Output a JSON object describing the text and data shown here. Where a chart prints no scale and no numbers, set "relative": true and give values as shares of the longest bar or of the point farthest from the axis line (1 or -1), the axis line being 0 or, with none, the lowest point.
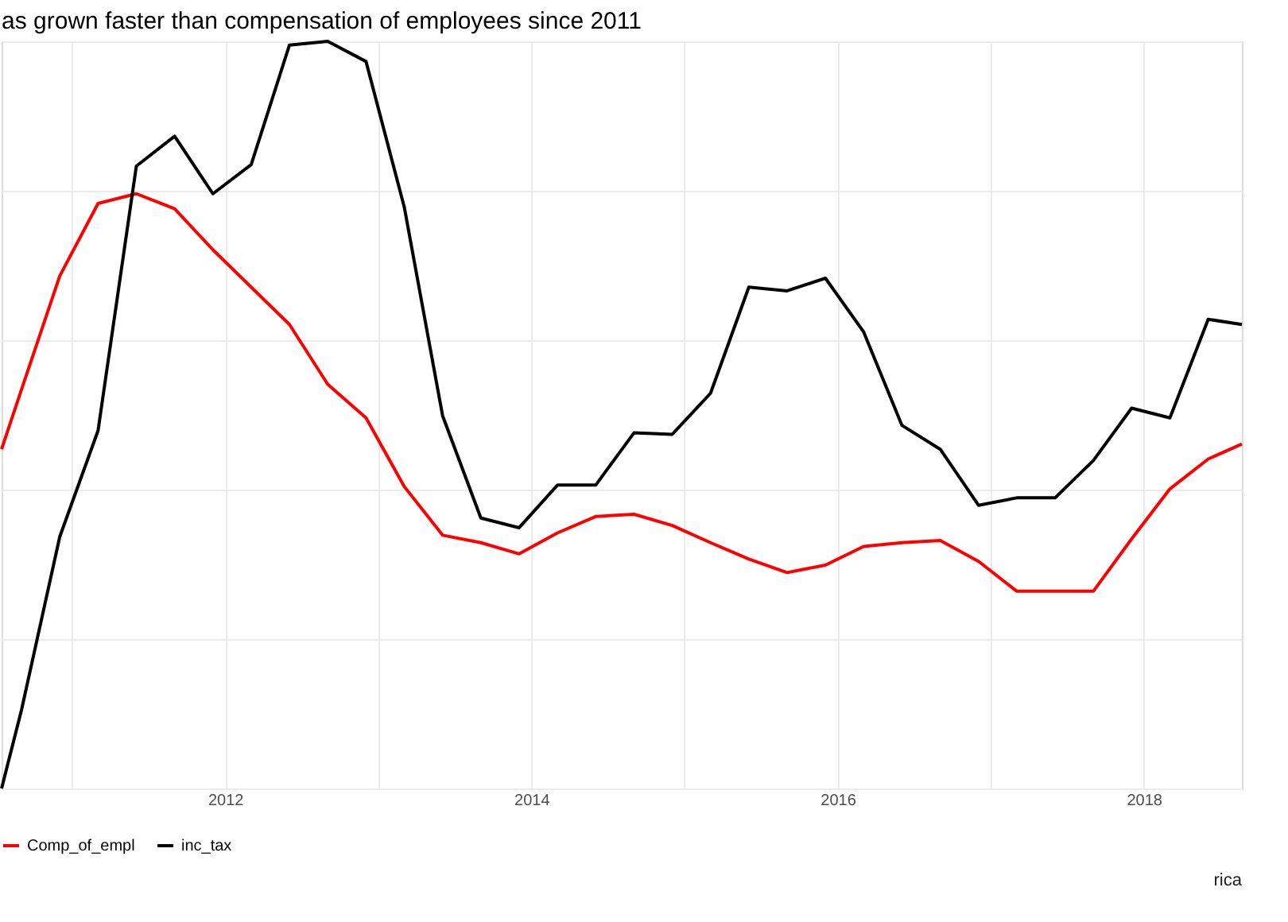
{
  "chart_data": {
    "type": "line",
    "title": "as grown faster than compensation of employees since 2011",
    "relative": true,
    "x": [
      2010.54,
      2010.67,
      2010.92,
      2011.17,
      2011.42,
      2011.67,
      2011.92,
      2012.17,
      2012.42,
      2012.67,
      2012.92,
      2013.17,
      2013.42,
      2013.67,
      2013.92,
      2014.17,
      2014.42,
      2014.67,
      2014.92,
      2015.17,
      2015.42,
      2015.67,
      2015.92,
      2016.17,
      2016.42,
      2016.67,
      2016.92,
      2017.17,
      2017.42,
      2017.67,
      2017.92,
      2018.17,
      2018.42,
      2018.64
    ],
    "series": [
      {
        "name": "Comp_of_empl",
        "color": "#ff0000",
        "values": [
          0.454,
          0.534,
          0.686,
          0.783,
          0.796,
          0.776,
          0.721,
          0.671,
          0.621,
          0.541,
          0.496,
          0.404,
          0.339,
          0.329,
          0.314,
          0.342,
          0.364,
          0.367,
          0.352,
          0.329,
          0.307,
          0.289,
          0.299,
          0.324,
          0.329,
          0.332,
          0.304,
          0.264,
          0.264,
          0.264,
          0.334,
          0.401,
          0.441,
          0.461
        ]
      },
      {
        "name": "inc_tax",
        "color": "#000000",
        "values": [
          0,
          0.105,
          0.337,
          0.479,
          0.833,
          0.873,
          0.796,
          0.835,
          0.995,
          1,
          0.973,
          0.778,
          0.499,
          0.362,
          0.349,
          0.406,
          0.406,
          0.476,
          0.474,
          0.529,
          0.671,
          0.666,
          0.683,
          0.611,
          0.486,
          0.454,
          0.379,
          0.389,
          0.389,
          0.439,
          0.509,
          0.496,
          0.628,
          0.621
        ]
      }
    ],
    "xlim": [
      2010.54,
      2018.64
    ],
    "xticks": [
      2012,
      2014,
      2016,
      2018
    ],
    "grid": true,
    "legend": "bottom",
    "line_style": "solid",
    "marker": "none",
    "annotations": [
      "rica"
    ]
  }
}
